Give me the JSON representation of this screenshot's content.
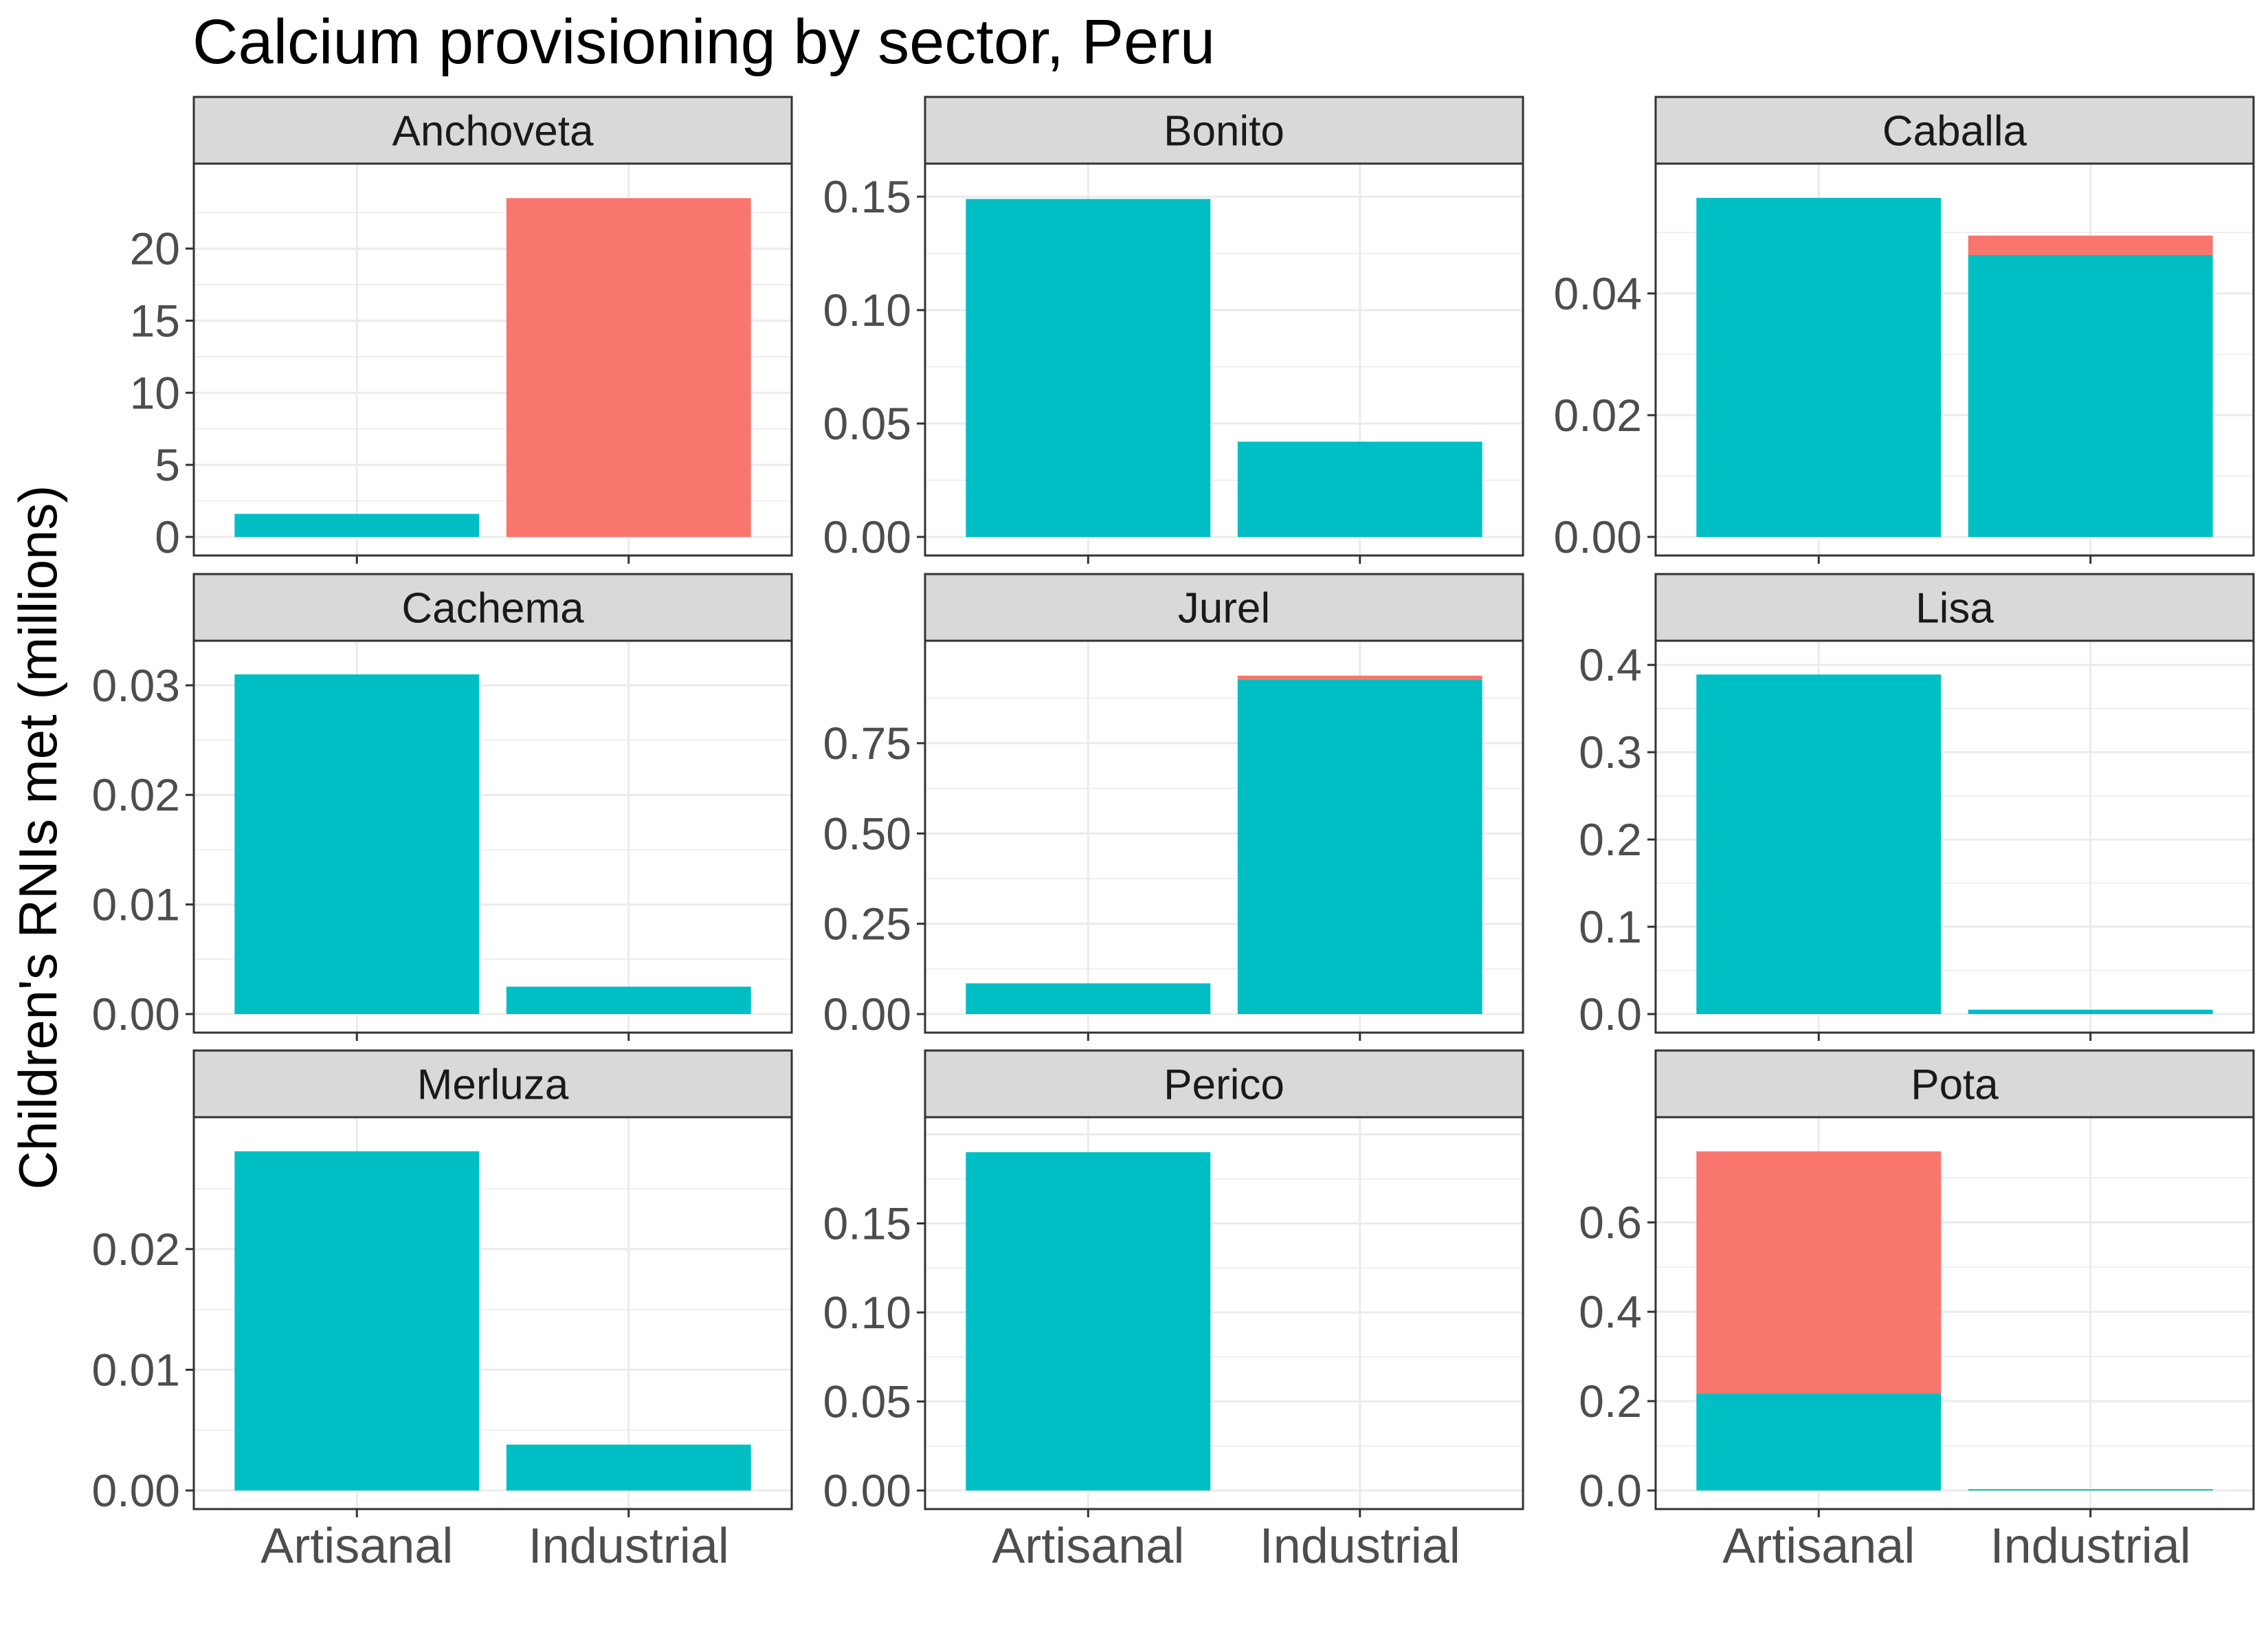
{
  "chart_data": {
    "type": "bar",
    "stacked": true,
    "title": "Calcium provisioning by sector, Peru",
    "ylabel": "Children's RNIs met (millions)",
    "xlabel": "",
    "categories": [
      "Artisanal",
      "Industrial"
    ],
    "grid": true,
    "legend": "none",
    "colors": {
      "lower": "#00BFC4",
      "upper": "#F8766D",
      "strip": "#D9D9D9",
      "grid": "#EBEBEB",
      "border": "#333333"
    },
    "facets": [
      {
        "name": "Anchoveta",
        "yticks": [
          "0",
          "5",
          "10",
          "15",
          "20"
        ],
        "ylim": [
          0,
          24.7
        ],
        "series": [
          {
            "color": "#00BFC4",
            "values": [
              1.6,
              0
            ]
          },
          {
            "color": "#F8766D",
            "values": [
              0,
              23.5
            ]
          }
        ]
      },
      {
        "name": "Bonito",
        "yticks": [
          "0.00",
          "0.05",
          "0.10",
          "0.15"
        ],
        "ylim": [
          0,
          0.157
        ],
        "series": [
          {
            "color": "#00BFC4",
            "values": [
              0.149,
              0.042
            ]
          },
          {
            "color": "#F8766D",
            "values": [
              0,
              0
            ]
          }
        ]
      },
      {
        "name": "Caballa",
        "yticks": [
          "0.00",
          "0.02",
          "0.04"
        ],
        "ylim": [
          0,
          0.0585
        ],
        "series": [
          {
            "color": "#00BFC4",
            "values": [
              0.0557,
              0.0463
            ]
          },
          {
            "color": "#F8766D",
            "values": [
              0,
              0.0032
            ]
          }
        ]
      },
      {
        "name": "Cachema",
        "yticks": [
          "0.00",
          "0.01",
          "0.02",
          "0.03"
        ],
        "ylim": [
          0,
          0.0325
        ],
        "series": [
          {
            "color": "#00BFC4",
            "values": [
              0.031,
              0.0025
            ]
          },
          {
            "color": "#F8766D",
            "values": [
              0,
              0
            ]
          }
        ]
      },
      {
        "name": "Jurel",
        "yticks": [
          "0.00",
          "0.25",
          "0.50",
          "0.75"
        ],
        "ylim": [
          0,
          0.986
        ],
        "series": [
          {
            "color": "#00BFC4",
            "values": [
              0.085,
              0.925
            ]
          },
          {
            "color": "#F8766D",
            "values": [
              0,
              0.012
            ]
          }
        ]
      },
      {
        "name": "Lisa",
        "yticks": [
          "0.0",
          "0.1",
          "0.2",
          "0.3",
          "0.4"
        ],
        "ylim": [
          0,
          0.408
        ],
        "series": [
          {
            "color": "#00BFC4",
            "values": [
              0.389,
              0.005
            ]
          },
          {
            "color": "#F8766D",
            "values": [
              0,
              0
            ]
          }
        ]
      },
      {
        "name": "Merluza",
        "yticks": [
          "0.00",
          "0.01",
          "0.02"
        ],
        "ylim": [
          0,
          0.0295
        ],
        "series": [
          {
            "color": "#00BFC4",
            "values": [
              0.0281,
              0.0038
            ]
          },
          {
            "color": "#F8766D",
            "values": [
              0,
              0
            ]
          }
        ]
      },
      {
        "name": "Perico",
        "yticks": [
          "0.00",
          "0.05",
          "0.10",
          "0.15"
        ],
        "ylim": [
          0,
          0.2
        ],
        "series": [
          {
            "color": "#00BFC4",
            "values": [
              0.19,
              0
            ]
          },
          {
            "color": "#F8766D",
            "values": [
              0,
              0
            ]
          }
        ]
      },
      {
        "name": "Pota",
        "yticks": [
          "0.0",
          "0.2",
          "0.4",
          "0.6"
        ],
        "ylim": [
          0,
          0.797
        ],
        "series": [
          {
            "color": "#00BFC4",
            "values": [
              0.217,
              0.003
            ]
          },
          {
            "color": "#F8766D",
            "values": [
              0.542,
              0
            ]
          }
        ]
      }
    ]
  }
}
